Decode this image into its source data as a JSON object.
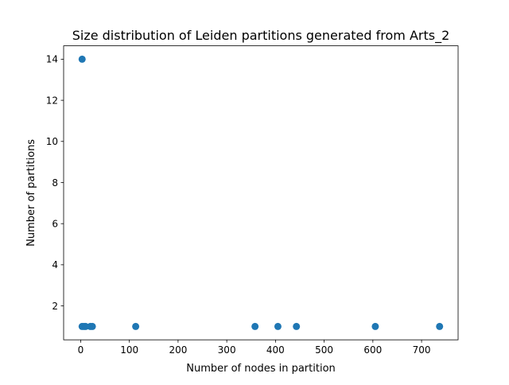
{
  "chart_data": {
    "type": "scatter",
    "title": "Size distribution of Leiden partitions generated from Arts_2",
    "xlabel": "Number of nodes in partition",
    "ylabel": "Number of partitions",
    "xlim": [
      -35,
      775
    ],
    "ylim": [
      0.35,
      14.65
    ],
    "xticks": [
      0,
      100,
      200,
      300,
      400,
      500,
      600,
      700
    ],
    "yticks": [
      2,
      4,
      6,
      8,
      10,
      12,
      14
    ],
    "grid": false,
    "points": [
      {
        "x": 3,
        "y": 14
      },
      {
        "x": 3,
        "y": 1
      },
      {
        "x": 7,
        "y": 1
      },
      {
        "x": 10,
        "y": 1
      },
      {
        "x": 20,
        "y": 1
      },
      {
        "x": 24,
        "y": 1
      },
      {
        "x": 113,
        "y": 1
      },
      {
        "x": 358,
        "y": 1
      },
      {
        "x": 405,
        "y": 1
      },
      {
        "x": 443,
        "y": 1
      },
      {
        "x": 605,
        "y": 1
      },
      {
        "x": 737,
        "y": 1
      }
    ],
    "colors": {
      "marker": "#1f77b4"
    }
  }
}
